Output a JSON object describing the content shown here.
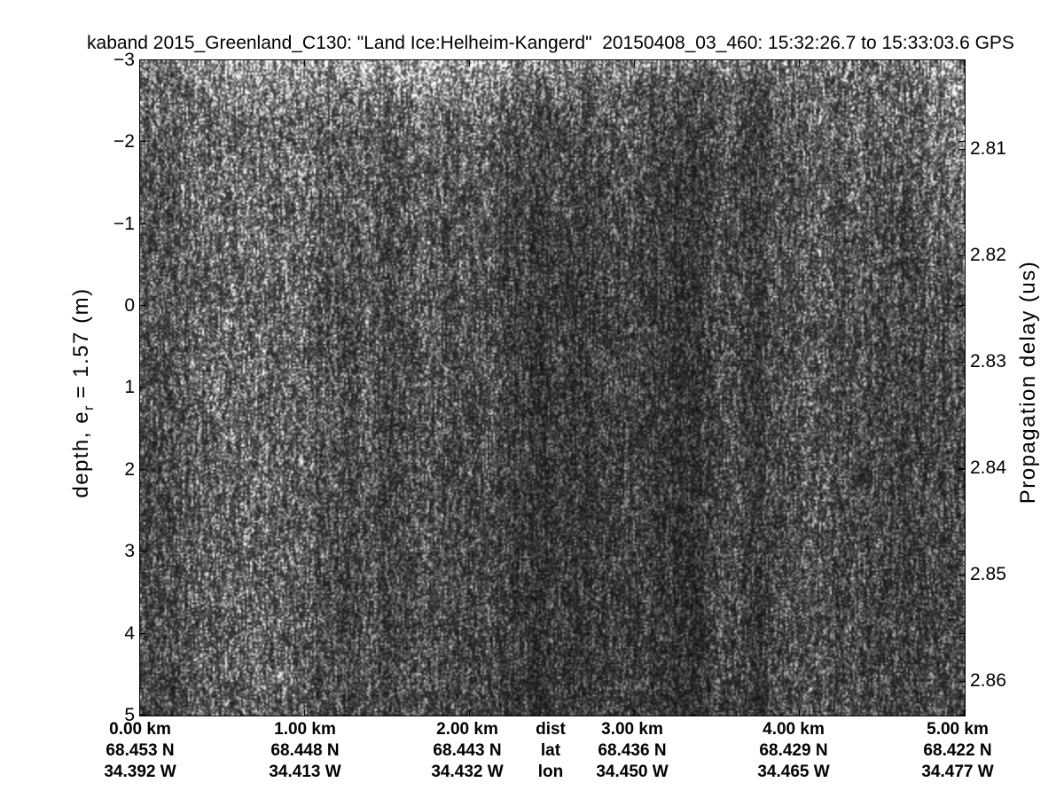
{
  "chart_data": {
    "type": "heatmap",
    "title": "kaband 2015_Greenland_C130: \"Land Ice:Helheim-Kangerd\"  20150408_03_460: 15:32:26.7 to 15:33:03.6 GPS",
    "description": "Ka-band airborne radar echogram rendered as grayscale speckle image; brightness encodes radar return power over a 5 km along-track segment",
    "colormap": "gray",
    "legend": "none",
    "grid": "off",
    "left_axis": {
      "label_pre": "depth, e",
      "label_sub": "r",
      "label_post": " = 1.57 (m)",
      "tick_labels": [
        "−3",
        "−2",
        "−1",
        "0",
        "1",
        "2",
        "3",
        "4",
        "5"
      ],
      "tick_values": [
        -3,
        -2,
        -1,
        0,
        1,
        2,
        3,
        4,
        5
      ],
      "range": [
        -3,
        5
      ]
    },
    "right_axis": {
      "label": "Propagation delay (us)",
      "tick_labels": [
        "2.81",
        "2.82",
        "2.83",
        "2.84",
        "2.85",
        "2.86"
      ],
      "tick_values": [
        2.81,
        2.82,
        2.83,
        2.84,
        2.85,
        2.86
      ]
    },
    "bottom_axis": {
      "row_headers": [
        "dist",
        "lat",
        "lon"
      ],
      "tick_values_km": [
        0,
        1,
        2,
        3,
        4,
        5
      ],
      "columns": [
        {
          "dist": "0.00 km",
          "lat": "68.453 N",
          "lon": "34.392 W"
        },
        {
          "dist": "1.00 km",
          "lat": "68.448 N",
          "lon": "34.413 W"
        },
        {
          "dist": "2.00 km",
          "lat": "68.443 N",
          "lon": "34.432 W"
        },
        {
          "dist": "3.00 km",
          "lat": "68.436 N",
          "lon": "34.450 W"
        },
        {
          "dist": "4.00 km",
          "lat": "68.429 N",
          "lon": "34.465 W"
        },
        {
          "dist": "5.00 km",
          "lat": "68.422 N",
          "lon": "34.477 W"
        }
      ]
    },
    "image": {
      "style": "rayleigh-speckle with faint vertical streaks",
      "row_fracs": [
        0,
        0.045,
        0.1,
        0.2,
        0.35,
        0.5,
        0.65,
        0.8,
        1.0
      ],
      "brightness_grid": [
        [
          165,
          180,
          200,
          210,
          210,
          195,
          175,
          155,
          145,
          138,
          140,
          155,
          185
        ],
        [
          138,
          146,
          154,
          160,
          158,
          140,
          120,
          108,
          103,
          103,
          110,
          138,
          172
        ],
        [
          125,
          130,
          120,
          122,
          118,
          108,
          98,
          92,
          92,
          96,
          104,
          130,
          165
        ],
        [
          118,
          124,
          114,
          116,
          104,
          94,
          84,
          80,
          84,
          92,
          98,
          108,
          128
        ],
        [
          112,
          120,
          113,
          108,
          96,
          86,
          77,
          74,
          80,
          89,
          93,
          97,
          100
        ],
        [
          107,
          116,
          111,
          101,
          93,
          83,
          73,
          71,
          77,
          87,
          91,
          93,
          92
        ],
        [
          102,
          113,
          108,
          96,
          90,
          80,
          72,
          70,
          75,
          85,
          89,
          91,
          89
        ],
        [
          99,
          111,
          105,
          93,
          88,
          78,
          71,
          69,
          74,
          83,
          87,
          89,
          87
        ],
        [
          96,
          108,
          102,
          90,
          86,
          76,
          70,
          68,
          72,
          81,
          85,
          87,
          85
        ]
      ]
    }
  }
}
